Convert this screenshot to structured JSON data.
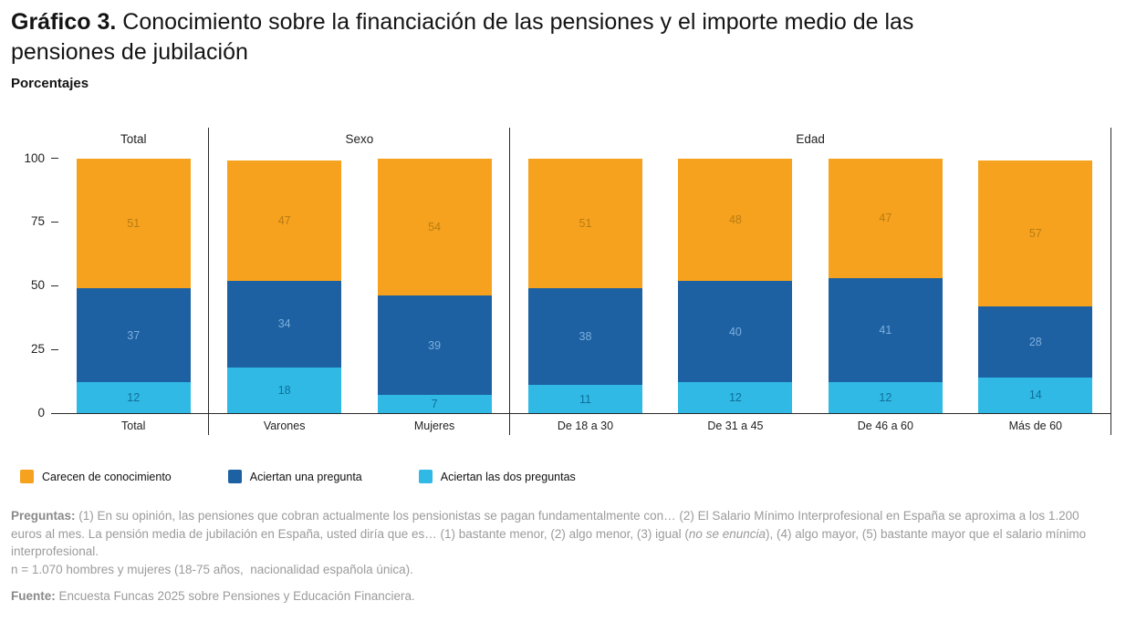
{
  "header": {
    "title_label": "Gráfico 3.",
    "title_text": " Conocimiento sobre la financiación de las pensiones y el importe medio de las pensiones de jubilación",
    "subtitle": "Porcentajes"
  },
  "chart_data": {
    "type": "bar",
    "stacked": true,
    "title": "Conocimiento sobre la financiación de las pensiones y el importe medio de las pensiones de jubilación",
    "ylabel": "Porcentajes",
    "ylim": [
      0,
      100
    ],
    "axis_max": 102,
    "yticks": [
      0,
      25,
      50,
      75,
      100
    ],
    "grid": false,
    "legend_position": "bottom",
    "stack_order": [
      "dos",
      "una",
      "carecen"
    ],
    "series": [
      {
        "id": "carecen",
        "name": "Carecen de conocimiento",
        "color": "#F6A21E",
        "label_color": "#B97C12"
      },
      {
        "id": "una",
        "name": "Aciertan una pregunta",
        "color": "#1D61A3",
        "label_color": "#7EAEDC"
      },
      {
        "id": "dos",
        "name": "Aciertan las dos preguntas",
        "color": "#2FB9E4",
        "label_color": "#0F6F9B"
      }
    ],
    "groups": [
      {
        "label": "Total",
        "categories": [
          "Total"
        ],
        "values": {
          "carecen": [
            51
          ],
          "una": [
            37
          ],
          "dos": [
            12
          ]
        }
      },
      {
        "label": "Sexo",
        "categories": [
          "Varones",
          "Mujeres"
        ],
        "values": {
          "carecen": [
            47,
            54
          ],
          "una": [
            34,
            39
          ],
          "dos": [
            18,
            7
          ]
        }
      },
      {
        "label": "Edad",
        "categories": [
          "De 18 a 30",
          "De 31 a 45",
          "De 46 a 60",
          "Más de 60"
        ],
        "values": {
          "carecen": [
            51,
            48,
            47,
            57
          ],
          "una": [
            38,
            40,
            41,
            28
          ],
          "dos": [
            11,
            12,
            12,
            14
          ]
        }
      }
    ]
  },
  "notes": {
    "preguntas_label": "Preguntas:",
    "preguntas_part1": " (1) En su opinión, las pensiones que cobran actualmente los pensionistas se pagan fundamentalmente con… (2) El Salario Mínimo Interprofesional en España se aproxima a los 1.200 euros al mes. La pensión media de jubilación en España, usted diría que es… (1) bastante menor, (2) algo menor, (3) igual (",
    "preguntas_italic": "no se enuncia",
    "preguntas_part2": "), (4) algo mayor, (5) bastante mayor que el salario mínimo interprofesional.",
    "sample": "n = 1.070 hombres y mujeres (18-75 años,  nacionalidad española única).",
    "fuente_label": "Fuente:",
    "fuente_text": " Encuesta Funcas 2025 sobre Pensiones y Educación Financiera."
  }
}
